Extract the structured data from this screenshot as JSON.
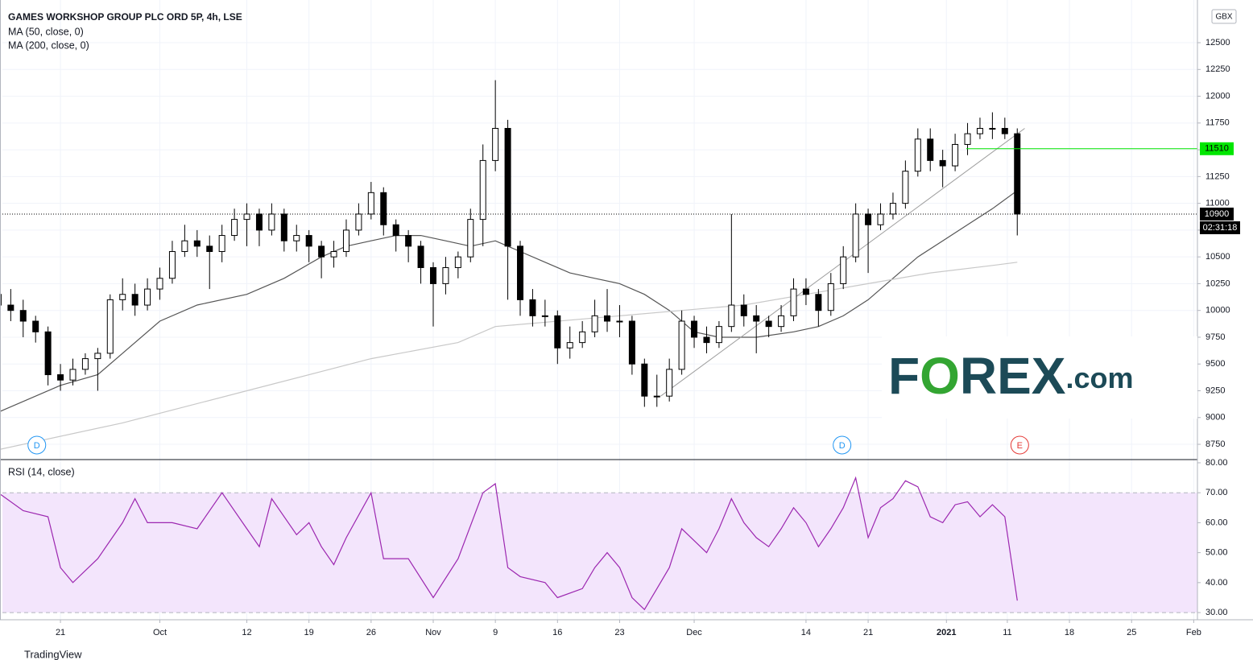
{
  "chart_data": [
    {
      "type": "candlestick",
      "title": "GAMES WORKSHOP GROUP PLC ORD 5P, 4h, LSE",
      "currency": "GBX",
      "x": [
        0,
        1,
        2,
        3,
        4,
        5,
        6,
        7,
        8,
        9,
        10,
        11,
        12,
        13,
        14,
        15,
        16,
        17,
        18,
        19,
        20,
        21,
        22,
        23,
        24,
        25,
        26,
        27,
        28,
        29,
        30,
        31,
        32,
        33,
        34,
        35,
        36,
        37,
        38,
        39,
        40,
        41,
        42,
        43,
        44,
        45,
        46,
        47,
        48,
        49,
        50,
        51,
        52,
        53,
        54,
        55,
        56,
        57,
        58,
        59,
        60,
        61,
        62,
        63,
        64,
        65,
        66,
        67,
        68,
        69,
        70,
        71,
        72,
        73,
        74,
        75,
        76,
        77,
        78,
        79,
        80,
        81,
        82
      ],
      "open": [
        10150,
        10050,
        10000,
        9900,
        9800,
        9400,
        9350,
        9450,
        9550,
        9600,
        10100,
        10150,
        10050,
        10200,
        10300,
        10550,
        10650,
        10600,
        10550,
        10700,
        10850,
        10900,
        10750,
        10900,
        10650,
        10700,
        10600,
        10500,
        10550,
        10750,
        10900,
        11100,
        10800,
        10700,
        10600,
        10400,
        10250,
        10400,
        10500,
        10850,
        11400,
        11700,
        10600,
        10100,
        9950,
        9950,
        9650,
        9700,
        9800,
        9950,
        9900,
        9900,
        9500,
        9200,
        9200,
        9450,
        9900,
        9750,
        9700,
        9850,
        10050,
        9950,
        9900,
        9850,
        9950,
        10200,
        10150,
        10000,
        10250,
        10500,
        10900,
        10800,
        10900,
        11000,
        11300,
        11600,
        11400,
        11350,
        11550,
        11650,
        11700,
        11700,
        11650
      ],
      "high": [
        10250,
        10200,
        10100,
        9950,
        9850,
        9500,
        9550,
        9600,
        9650,
        10150,
        10300,
        10250,
        10300,
        10400,
        10650,
        10800,
        10750,
        10700,
        10800,
        10950,
        11000,
        10950,
        11000,
        10950,
        10800,
        10750,
        10650,
        10650,
        10850,
        11000,
        11200,
        11150,
        10850,
        10750,
        10650,
        10450,
        10500,
        10550,
        10950,
        11550,
        12150,
        11780,
        10650,
        10200,
        10100,
        10000,
        9850,
        9900,
        10100,
        10200,
        10050,
        9950,
        9550,
        9400,
        9550,
        10000,
        9950,
        9850,
        9900,
        10900,
        10150,
        10050,
        9950,
        10050,
        10300,
        10300,
        10200,
        10350,
        10600,
        11000,
        10950,
        11000,
        11100,
        11400,
        11700,
        11700,
        11500,
        11650,
        11750,
        11800,
        11850,
        11800,
        11700
      ],
      "low": [
        9900,
        9900,
        9750,
        9700,
        9300,
        9250,
        9300,
        9400,
        9250,
        9550,
        10000,
        9950,
        10000,
        10100,
        10250,
        10500,
        10500,
        10200,
        10450,
        10650,
        10600,
        10600,
        10700,
        10550,
        10550,
        10450,
        10300,
        10400,
        10500,
        10700,
        10850,
        10700,
        10550,
        10450,
        10250,
        9850,
        10150,
        10300,
        10450,
        10600,
        11300,
        10100,
        9950,
        9850,
        9850,
        9500,
        9550,
        9650,
        9750,
        9800,
        9750,
        9400,
        9100,
        9100,
        9150,
        9400,
        9650,
        9600,
        9650,
        9800,
        9850,
        9600,
        9750,
        9800,
        9900,
        10050,
        9850,
        9950,
        10200,
        10450,
        10350,
        10750,
        10850,
        10950,
        11250,
        11300,
        11150,
        11300,
        11450,
        11600,
        11600,
        11600,
        10700
      ],
      "close": [
        10050,
        10000,
        9900,
        9800,
        9400,
        9350,
        9450,
        9550,
        9600,
        10100,
        10150,
        10050,
        10200,
        10300,
        10550,
        10650,
        10600,
        10550,
        10700,
        10850,
        10900,
        10750,
        10900,
        10650,
        10700,
        10600,
        10500,
        10550,
        10750,
        10900,
        11100,
        10800,
        10700,
        10600,
        10400,
        10250,
        10400,
        10500,
        10850,
        11400,
        11700,
        10600,
        10100,
        9950,
        9950,
        9650,
        9700,
        9800,
        9950,
        9900,
        9900,
        9500,
        9200,
        9200,
        9450,
        9900,
        9750,
        9700,
        9850,
        10050,
        9950,
        9900,
        9850,
        9950,
        10200,
        10150,
        10000,
        10250,
        10500,
        10900,
        10800,
        10900,
        11000,
        11300,
        11600,
        11400,
        11350,
        11550,
        11650,
        11700,
        11700,
        11650,
        10900
      ],
      "up_color": "#ffffff",
      "down_color": "#000000",
      "wick_color": "#000000",
      "series": [
        {
          "name": "MA (50, close, 0)",
          "color": "#555555",
          "x": [
            0,
            5,
            8,
            10,
            13,
            16,
            20,
            23,
            26,
            28,
            30,
            32,
            34,
            36,
            38,
            40,
            42,
            44,
            46,
            48,
            50,
            52,
            54,
            56,
            58,
            61,
            64,
            66,
            68,
            70,
            72,
            74,
            76,
            78,
            80,
            82
          ],
          "values": [
            9050,
            9300,
            9400,
            9600,
            9900,
            10050,
            10150,
            10300,
            10500,
            10600,
            10650,
            10700,
            10700,
            10650,
            10600,
            10650,
            10550,
            10450,
            10350,
            10300,
            10250,
            10150,
            10000,
            9800,
            9750,
            9750,
            9800,
            9850,
            9950,
            10100,
            10300,
            10500,
            10650,
            10800,
            10950,
            11120
          ]
        },
        {
          "name": "MA (200, close, 0)",
          "color": "#c8c8c8",
          "x": [
            0,
            10,
            20,
            30,
            37,
            40,
            50,
            55,
            60,
            65,
            70,
            75,
            80,
            82
          ],
          "values": [
            8700,
            8950,
            9250,
            9550,
            9700,
            9850,
            9950,
            10000,
            10050,
            10150,
            10250,
            10350,
            10420,
            10450
          ]
        }
      ],
      "price_lines": [
        {
          "value": 11510,
          "color": "#00e600",
          "x_start": 77.9
        },
        {
          "value": 10900,
          "color": "#000000"
        }
      ],
      "countdown": "02:31:18",
      "trendline": {
        "x": [
          53.3,
          82.6
        ],
        "values": [
          9200,
          11700
        ],
        "color": "#9e9e9e"
      },
      "events": [
        {
          "x": 3.1,
          "label": "D",
          "color": "#2196f3"
        },
        {
          "x": 67.9,
          "label": "D",
          "color": "#2196f3"
        },
        {
          "x": 82.2,
          "label": "E",
          "color": "#e53935"
        }
      ],
      "xlim": [
        0.33,
        96.5
      ],
      "ylim": [
        8615,
        12861
      ],
      "yticks": [
        8750,
        9000,
        9250,
        9500,
        9750,
        10000,
        10250,
        10500,
        10750,
        11000,
        11250,
        11500,
        11750,
        12000,
        12250,
        12500
      ],
      "xticks": [
        {
          "value": 5,
          "label": "21"
        },
        {
          "value": 13,
          "label": "Oct"
        },
        {
          "value": 20,
          "label": "12"
        },
        {
          "value": 25,
          "label": "19"
        },
        {
          "value": 30,
          "label": "26"
        },
        {
          "value": 35,
          "label": "Nov"
        },
        {
          "value": 40,
          "label": "9"
        },
        {
          "value": 45,
          "label": "16"
        },
        {
          "value": 50,
          "label": "23"
        },
        {
          "value": 56,
          "label": "Dec"
        },
        {
          "value": 65,
          "label": "14"
        },
        {
          "value": 70,
          "label": "21"
        },
        {
          "value": 76.3,
          "label": "2021"
        },
        {
          "value": 81.2,
          "label": "11"
        },
        {
          "value": 86.2,
          "label": "18"
        },
        {
          "value": 91.2,
          "label": "25"
        },
        {
          "value": 96.2,
          "label": "Feb"
        }
      ],
      "grid": true
    },
    {
      "type": "line",
      "title": "RSI (14, close)",
      "color": "#9c27b0",
      "x": [
        0,
        2,
        4,
        5,
        6,
        8,
        10,
        11,
        12,
        14,
        16,
        18,
        20,
        21,
        22,
        24,
        25,
        26,
        27,
        28,
        30,
        31,
        33,
        35,
        37,
        39,
        40,
        41,
        42,
        44,
        45,
        47,
        48,
        49,
        50,
        51,
        52,
        53,
        54,
        55,
        56,
        57,
        58,
        59,
        60,
        61,
        62,
        63,
        64,
        65,
        66,
        67,
        68,
        69,
        70,
        71,
        72,
        73,
        74,
        75,
        76,
        77,
        78,
        79,
        80,
        81,
        82
      ],
      "values": [
        70,
        64,
        62,
        45,
        40,
        48,
        60,
        68,
        60,
        60,
        58,
        70,
        58,
        52,
        68,
        56,
        60,
        52,
        46,
        55,
        70,
        48,
        48,
        35,
        48,
        70,
        73,
        45,
        42,
        40,
        35,
        38,
        45,
        50,
        45,
        35,
        31,
        38,
        45,
        58,
        54,
        50,
        58,
        68,
        60,
        55,
        52,
        58,
        65,
        60,
        52,
        58,
        65,
        75,
        55,
        65,
        68,
        74,
        72,
        62,
        60,
        66,
        67,
        62,
        66,
        62,
        34
      ],
      "band": [
        30,
        70
      ],
      "band_color": "#f3e5fc",
      "xlim": [
        0.33,
        96.5
      ],
      "ylim": [
        27.6,
        80.8
      ],
      "yticks": [
        {
          "value": 30,
          "label": "30.00"
        },
        {
          "value": 40,
          "label": "40.00"
        },
        {
          "value": 50,
          "label": "50.00"
        },
        {
          "value": 60,
          "label": "60.00"
        },
        {
          "value": 70,
          "label": "70.00"
        },
        {
          "value": 80,
          "label": "80.00"
        }
      ]
    }
  ],
  "logo": [
    "F",
    "O",
    "REX",
    ".com"
  ],
  "footer": "TradingView"
}
